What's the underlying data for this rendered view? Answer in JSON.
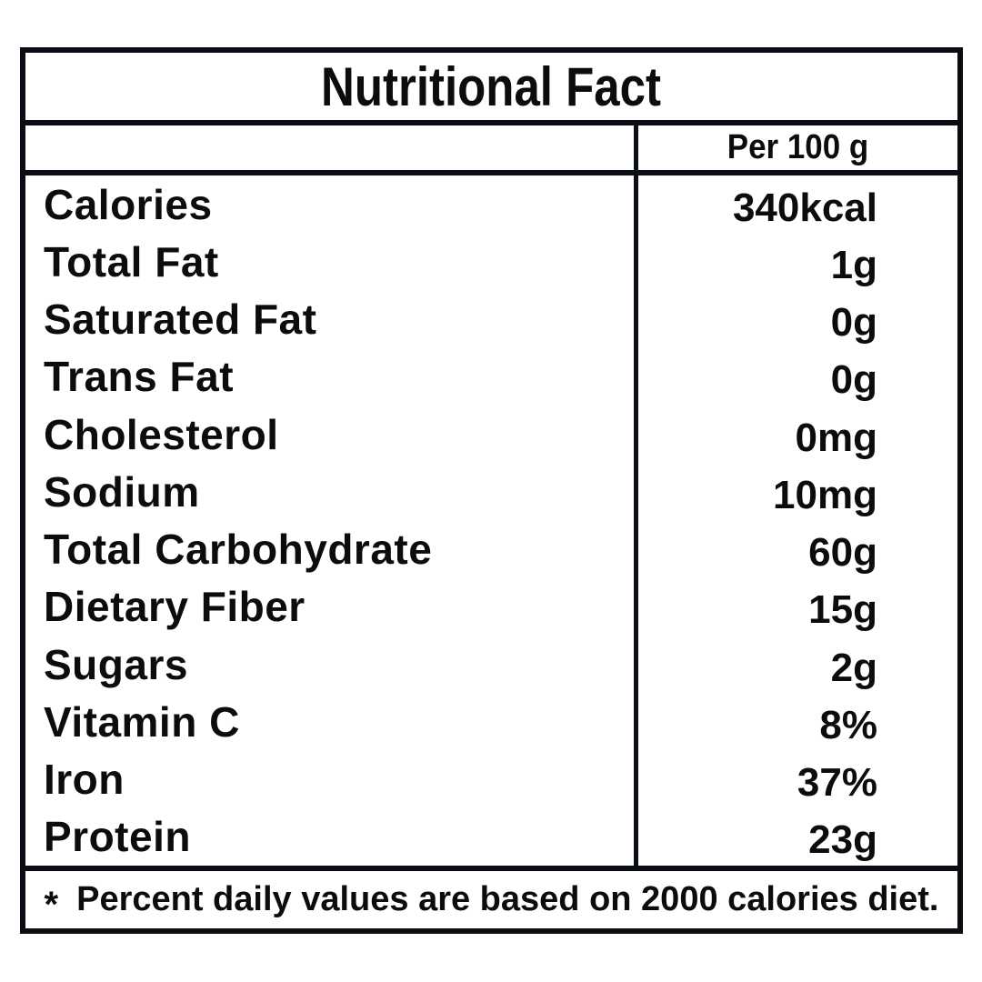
{
  "label": {
    "title": "Nutritional Fact",
    "column_header": "Per 100 g",
    "rows": [
      {
        "name": "Calories",
        "value": "340kcal"
      },
      {
        "name": "Total Fat",
        "value": "1g"
      },
      {
        "name": "Saturated Fat",
        "value": "0g"
      },
      {
        "name": "Trans Fat",
        "value": "0g"
      },
      {
        "name": "Cholesterol",
        "value": "0mg"
      },
      {
        "name": "Sodium",
        "value": "10mg"
      },
      {
        "name": "Total Carbohydrate",
        "value": "60g"
      },
      {
        "name": "Dietary Fiber",
        "value": "15g"
      },
      {
        "name": "Sugars",
        "value": "2g"
      },
      {
        "name": "Vitamin C",
        "value": "8%"
      },
      {
        "name": "Iron",
        "value": "37%"
      },
      {
        "name": "Protein",
        "value": "23g"
      }
    ],
    "footnote_marker": "*",
    "footnote": "Percent daily values are based on 2000 calories diet."
  },
  "colors": {
    "line": "#0a0e14",
    "text": "#0c0c0c",
    "background": "#ffffff"
  }
}
